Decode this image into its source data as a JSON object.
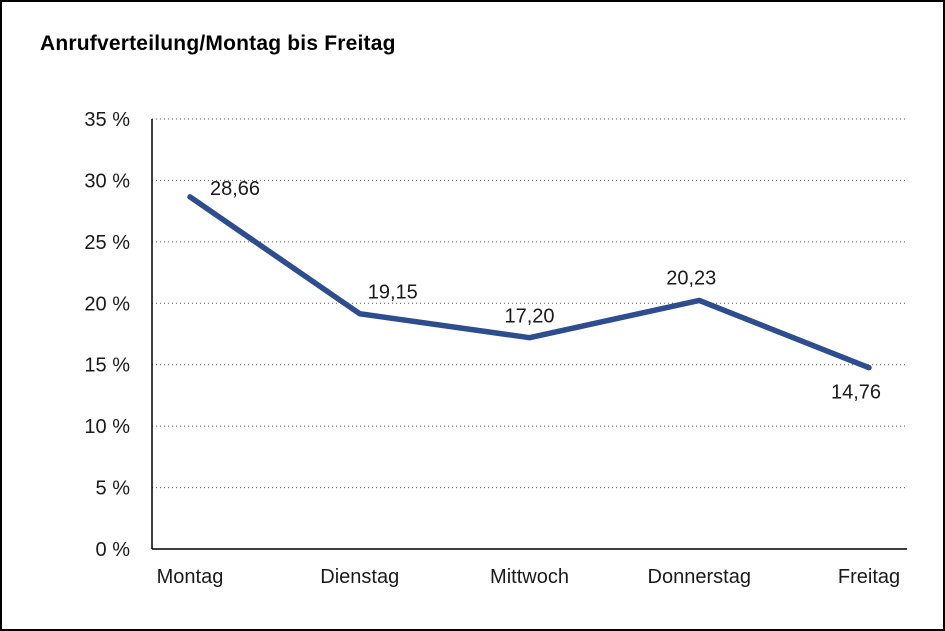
{
  "frame": {
    "background": "#ffffff",
    "border_color": "#000000"
  },
  "chart_data": {
    "type": "line",
    "title": "Anrufverteilung/Montag bis Freitag",
    "categories": [
      "Montag",
      "Dienstag",
      "Mittwoch",
      "Donnerstag",
      "Freitag"
    ],
    "series": [
      {
        "name": "Anrufverteilung",
        "values": [
          28.66,
          19.15,
          17.2,
          20.23,
          14.76
        ]
      }
    ],
    "point_labels": [
      "28,66",
      "19,15",
      "17,20",
      "20,23",
      "14,76"
    ],
    "y_ticks": [
      0,
      5,
      10,
      15,
      20,
      25,
      30,
      35
    ],
    "y_tick_suffix": " %",
    "ylim": [
      0,
      35
    ],
    "xlabel": "",
    "ylabel": "",
    "grid": "horizontal-dotted",
    "legend": "none",
    "line_color": "#2E4D8E",
    "axis_color": "#000000",
    "grid_color": "#555555",
    "text_color": "#1a1a1a"
  }
}
